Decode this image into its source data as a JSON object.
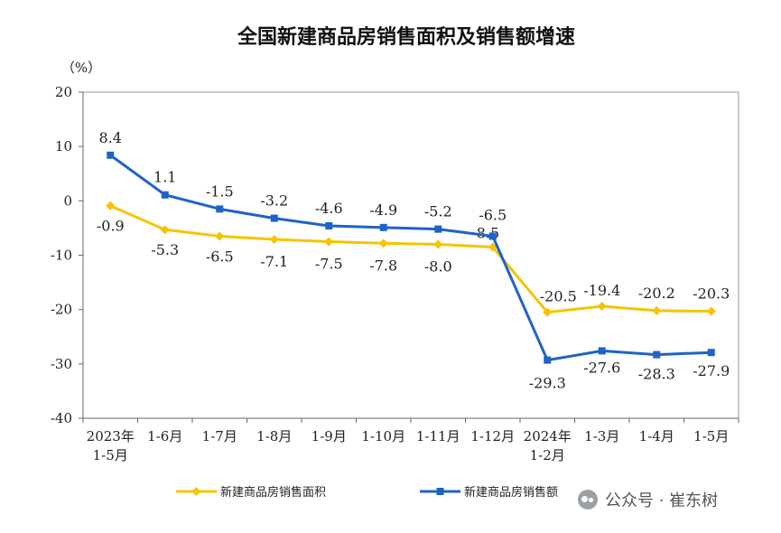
{
  "chart_data": {
    "type": "line",
    "title": "全国新建商品房销售面积及销售额增速",
    "unit_label": "（%）",
    "ylim": [
      -40,
      20
    ],
    "yticks": [
      20,
      10,
      0,
      -10,
      -20,
      -30,
      -40
    ],
    "categories": [
      [
        "2023年",
        "1-5月"
      ],
      [
        "1-6月"
      ],
      [
        "1-7月"
      ],
      [
        "1-8月"
      ],
      [
        "1-9月"
      ],
      [
        "1-10月"
      ],
      [
        "1-11月"
      ],
      [
        "1-12月"
      ],
      [
        "2024年",
        "1-2月"
      ],
      [
        "1-3月"
      ],
      [
        "1-4月"
      ],
      [
        "1-5月"
      ]
    ],
    "series": [
      {
        "name": "新建商品房销售面积",
        "color": "#F5C400",
        "marker": "diamond",
        "values": [
          -0.9,
          -5.3,
          -6.5,
          -7.1,
          -7.5,
          -7.8,
          -8.0,
          -8.5,
          -20.5,
          -19.4,
          -20.2,
          -20.3
        ],
        "labels": [
          "-0.9",
          "-5.3",
          "-6.5",
          "-7.1",
          "-7.5",
          "-7.8",
          "-8.0",
          "-8.5",
          "-20.5",
          "-19.4",
          "-20.2",
          "-20.3"
        ]
      },
      {
        "name": "新建商品房销售额",
        "color": "#1F63C6",
        "marker": "square",
        "values": [
          8.4,
          1.1,
          -1.5,
          -3.2,
          -4.6,
          -4.9,
          -5.2,
          -6.5,
          -29.3,
          -27.6,
          -28.3,
          -27.9
        ],
        "labels": [
          "8.4",
          "1.1",
          "-1.5",
          "-3.2",
          "-4.6",
          "-4.9",
          "-5.2",
          "-6.5",
          "-29.3",
          "-27.6",
          "-28.3",
          "-27.9"
        ]
      }
    ],
    "legend_position": "bottom",
    "grid": false
  },
  "watermark": {
    "text": "公众号 · 崔东树",
    "icon": "wechat-icon"
  }
}
